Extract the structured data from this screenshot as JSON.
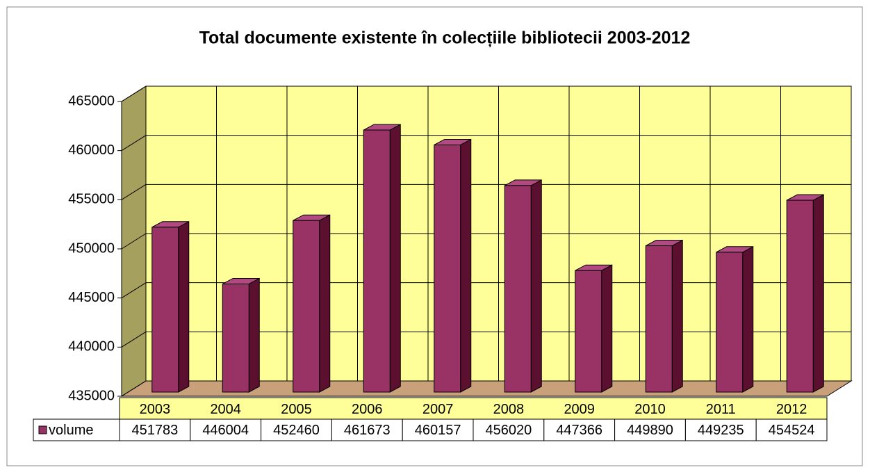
{
  "chart_data": {
    "type": "bar3d",
    "title": "Total documente existente în colecțiile bibliotecii 2003-2012",
    "categories": [
      "2003",
      "2004",
      "2005",
      "2006",
      "2007",
      "2008",
      "2009",
      "2010",
      "2011",
      "2012"
    ],
    "series": [
      {
        "name": "volume",
        "color": "#993366",
        "values": [
          451783,
          446004,
          452460,
          461673,
          460157,
          456020,
          447366,
          449890,
          449235,
          454524
        ]
      }
    ],
    "ylim": [
      435000,
      465000
    ],
    "yticks": [
      435000,
      440000,
      445000,
      450000,
      455000,
      460000,
      465000
    ],
    "grid": true
  }
}
